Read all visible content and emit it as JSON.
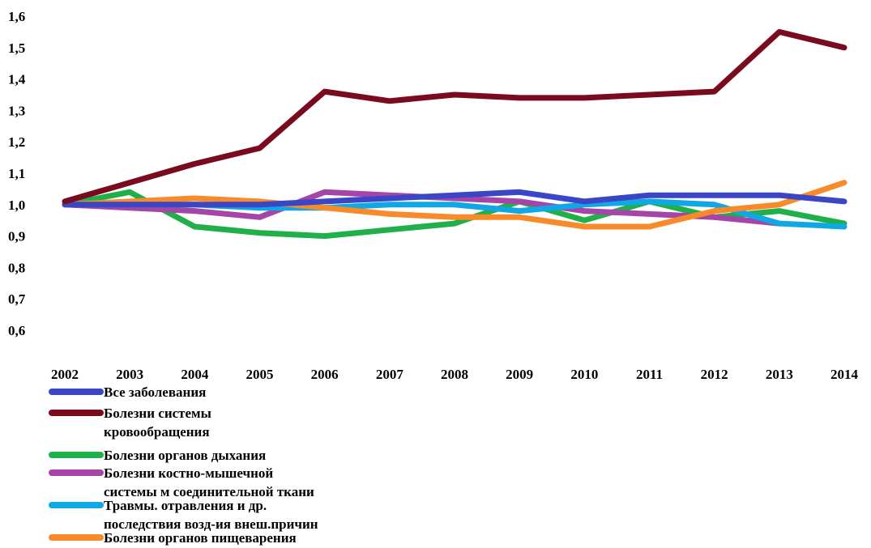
{
  "chart_data": {
    "type": "line",
    "title": "",
    "xlabel": "",
    "ylabel": "",
    "x": [
      "2002",
      "2003",
      "2004",
      "2005",
      "2006",
      "2007",
      "2008",
      "2009",
      "2010",
      "2011",
      "2012",
      "2013",
      "2014"
    ],
    "ylim": [
      0.6,
      1.6
    ],
    "yticks": [
      "1,6",
      "1,5",
      "1,4",
      "1,3",
      "1,2",
      "1,1",
      "1,0",
      "0,9",
      "0,8",
      "0,7",
      "0,6"
    ],
    "ytick_values": [
      1.6,
      1.5,
      1.4,
      1.3,
      1.2,
      1.1,
      1.0,
      0.9,
      0.8,
      0.7,
      0.6
    ],
    "grid": false,
    "legend_position": "bottom-left",
    "series": [
      {
        "name": "Все заболевания",
        "color": "#3a46c6",
        "values": [
          1.0,
          1.0,
          1.0,
          1.0,
          1.01,
          1.02,
          1.03,
          1.04,
          1.01,
          1.03,
          1.03,
          1.03,
          1.01
        ]
      },
      {
        "name": "Болезни системы кровообращения",
        "name_lines": [
          "Болезни системы",
          "кровообращения"
        ],
        "color": "#7a0a1e",
        "values": [
          1.01,
          1.07,
          1.13,
          1.18,
          1.36,
          1.33,
          1.35,
          1.34,
          1.34,
          1.35,
          1.36,
          1.55,
          1.5
        ]
      },
      {
        "name": "Болезни органов дыхания",
        "color": "#1fb04a",
        "values": [
          1.0,
          1.04,
          0.93,
          0.91,
          0.9,
          0.92,
          0.94,
          1.01,
          0.95,
          1.01,
          0.96,
          0.98,
          0.94
        ]
      },
      {
        "name": "Болезни костно-мышечной системы м соединительной ткани",
        "name_lines": [
          "Болезни костно-мышечной",
          "системы м соединительной ткани"
        ],
        "color": "#a545a8",
        "values": [
          1.0,
          0.99,
          0.98,
          0.96,
          1.04,
          1.03,
          1.02,
          1.01,
          0.98,
          0.97,
          0.96,
          0.94,
          null
        ]
      },
      {
        "name": "Травмы. отравления и др. последствия возд-ия внеш.причин",
        "name_lines": [
          "Травмы. отравления и др.",
          "последствия возд-ия внеш.причин"
        ],
        "color": "#10a8e4",
        "values": [
          null,
          1.0,
          1.0,
          0.99,
          0.99,
          1.0,
          1.0,
          0.98,
          1.0,
          1.01,
          1.0,
          0.94,
          0.93
        ]
      },
      {
        "name": "Болезни органов пищеварения",
        "color": "#f98a2a",
        "values": [
          1.0,
          1.01,
          1.02,
          1.01,
          0.99,
          0.97,
          0.96,
          0.96,
          0.93,
          0.93,
          0.98,
          1.0,
          1.07
        ]
      }
    ]
  }
}
